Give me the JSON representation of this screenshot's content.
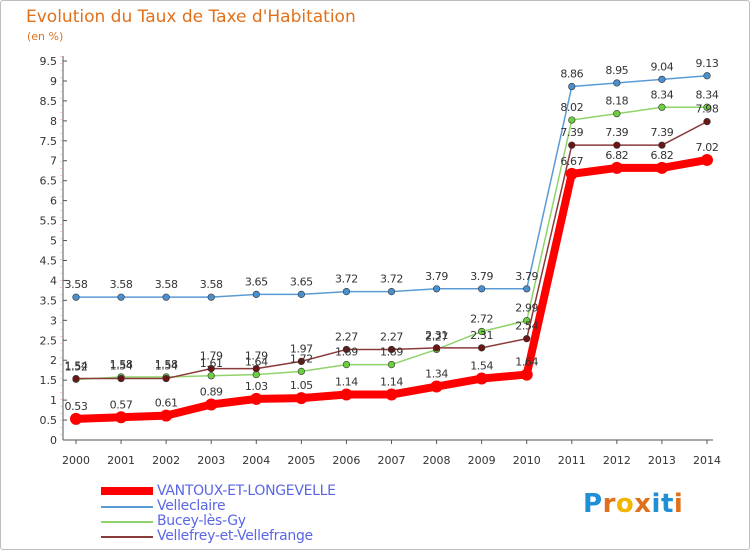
{
  "title": "Evolution du Taux de Taxe d'Habitation",
  "unit_label": "(en %)",
  "logo": {
    "text": "Proxiti",
    "letter_colors": [
      "#1f8fd6",
      "#e0711c",
      "#f2b600",
      "#e0711c",
      "#1f8fd6",
      "#1f8fd6",
      "#e0711c"
    ]
  },
  "colors": {
    "axis": "#555555",
    "grid_dash": "#ffbcbc",
    "label": "#333333"
  },
  "chart_data": {
    "type": "line",
    "title": "Evolution du Taux de Taxe d'Habitation",
    "ylabel": "(en %)",
    "x": [
      2000,
      2001,
      2002,
      2003,
      2004,
      2005,
      2006,
      2007,
      2008,
      2009,
      2010,
      2011,
      2012,
      2013,
      2014
    ],
    "ylim": [
      0,
      9.5
    ],
    "yticks": [
      "0",
      "0.5",
      "1",
      "1.5",
      "2",
      "2.5",
      "3",
      "3.5",
      "4",
      "4.5",
      "5",
      "5.5",
      "6",
      "6.5",
      "7",
      "7.5",
      "8",
      "8.5",
      "9",
      "9.5"
    ],
    "legend_position": "bottom-left",
    "series": [
      {
        "name": "VANTOUX-ET-LONGEVELLE",
        "color": "#ff0000",
        "width": 8,
        "marker_fill": "#ff0000",
        "values": [
          0.53,
          0.57,
          0.61,
          0.89,
          1.03,
          1.05,
          1.14,
          1.14,
          1.34,
          1.54,
          1.64,
          6.67,
          6.82,
          6.82,
          7.02
        ],
        "labels": [
          "0.53",
          "0.57",
          "0.61",
          "0.89",
          "1.03",
          "1.05",
          "1.14",
          "1.14",
          "1.34",
          "1.54",
          "1.64",
          "6.67",
          "6.82",
          "6.82",
          "7.02"
        ]
      },
      {
        "name": "Velleclaire",
        "color": "#5b9bd5",
        "width": 1.5,
        "marker_fill": "#4a8fce",
        "values": [
          3.58,
          3.58,
          3.58,
          3.58,
          3.65,
          3.65,
          3.72,
          3.72,
          3.79,
          3.79,
          3.79,
          8.86,
          8.95,
          9.04,
          9.13
        ],
        "labels": [
          "3.58",
          "3.58",
          "3.58",
          "3.58",
          "3.65",
          "3.65",
          "3.72",
          "3.72",
          "3.79",
          "3.79",
          "3.79",
          "8.86",
          "8.95",
          "9.04",
          "9.13"
        ]
      },
      {
        "name": "Bucey-lès-Gy",
        "color": "#8fd46a",
        "width": 1.5,
        "marker_fill": "#6ccf3e",
        "values": [
          1.52,
          1.58,
          1.58,
          1.61,
          1.64,
          1.72,
          1.89,
          1.89,
          2.27,
          2.72,
          2.99,
          8.02,
          8.18,
          8.34,
          8.34
        ],
        "labels": [
          "1.52",
          "1.58",
          "1.58",
          "1.61",
          "1.64",
          "1.72",
          "1.89",
          "1.89",
          "2.27",
          "2.72",
          "2.99",
          "8.02",
          "8.18",
          "8.34",
          "8.34"
        ]
      },
      {
        "name": "Vellefrey-et-Vellefrange",
        "color": "#8b3a3a",
        "width": 1.5,
        "marker_fill": "#6b1515",
        "values": [
          1.54,
          1.54,
          1.54,
          1.79,
          1.79,
          1.97,
          2.27,
          2.27,
          2.31,
          2.31,
          2.54,
          7.39,
          7.39,
          7.39,
          7.98
        ],
        "labels": [
          "1.54",
          "1.54",
          "1.54",
          "1.79",
          "1.79",
          "1.97",
          "2.27",
          "2.27",
          "2.31",
          "2.31",
          "2.54",
          "7.39",
          "7.39",
          "7.39",
          "7.98"
        ]
      }
    ]
  }
}
